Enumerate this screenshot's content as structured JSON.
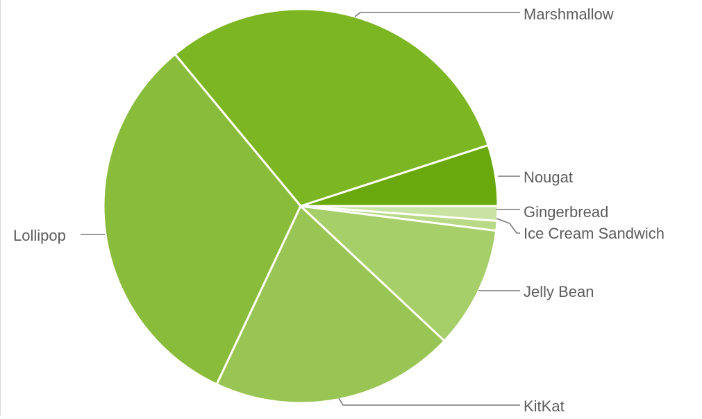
{
  "chart_data": {
    "type": "pie",
    "title": "",
    "slices": [
      {
        "label": "Nougat",
        "value": 5.0,
        "color": "#6aa90e"
      },
      {
        "label": "Marshmallow",
        "value": 31.0,
        "color": "#7db623"
      },
      {
        "label": "Lollipop",
        "value": 32.0,
        "color": "#89bc3b"
      },
      {
        "label": "KitKat",
        "value": 20.0,
        "color": "#99c554"
      },
      {
        "label": "Jelly Bean",
        "value": 10.0,
        "color": "#a6cf6a"
      },
      {
        "label": "Ice Cream Sandwich",
        "value": 0.8,
        "color": "#b8da87"
      },
      {
        "label": "Gingerbread",
        "value": 1.2,
        "color": "#c9e3a2"
      }
    ],
    "start": "3 o'clock",
    "direction": "counter-clockwise",
    "legend": "none (leader-line labels)"
  }
}
